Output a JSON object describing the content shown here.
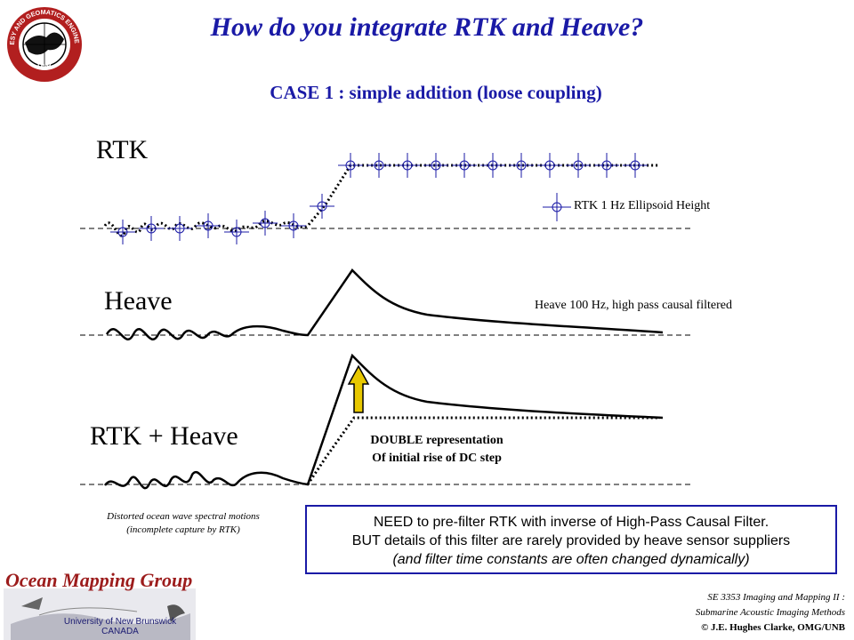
{
  "title": "How do you integrate RTK and Heave?",
  "subtitle": "CASE 1 : simple addition (loose coupling)",
  "panels": {
    "rtk": {
      "label": "RTK",
      "legend": "RTK 1 Hz Ellipsoid Height"
    },
    "heave": {
      "label": "Heave",
      "note": "Heave 100 Hz, high pass causal filtered"
    },
    "sum": {
      "label": "RTK + Heave",
      "note_line1": "DOUBLE representation",
      "note_line2": "Of initial rise of DC step"
    }
  },
  "caption": {
    "line1": "Distorted ocean wave spectral motions",
    "line2": "(incomplete capture by RTK)"
  },
  "note_box": {
    "line1": "NEED to pre-filter RTK with inverse of High-Pass Causal Filter.",
    "line2": "BUT details of this filter are rarely provided by heave sensor suppliers",
    "line3": "(and filter time constants are often changed dynamically)"
  },
  "footer": {
    "line1": "SE 3353 Imaging and Mapping II :",
    "line2": "Submarine Acoustic Imaging Methods",
    "line3": "© J.E. Hughes Clarke, OMG/UNB"
  },
  "logo_top": {
    "text_top": "GEODESY AND GEOMATICS ENGINEERING",
    "text_bottom": "UNB"
  },
  "logo_bottom": {
    "title": "Ocean Mapping Group",
    "line1": "University of New Brunswick",
    "line2": "CANADA"
  },
  "colors": {
    "accent": "#1a1aa6",
    "logo_red": "#9c1c1c",
    "arrow_fill": "#e8c800"
  },
  "icons": [
    "unb-geodesy-seal-logo",
    "omg-sonar-swath-logo",
    "rtk-crosshair-marker-icon",
    "up-arrow-icon"
  ]
}
